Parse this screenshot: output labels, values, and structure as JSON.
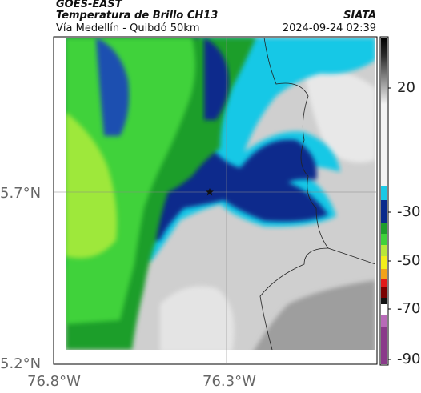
{
  "header": {
    "product": "GOES-EAST",
    "title": "Temperatura de Brillo CH13",
    "subtitle": "Vía Medellín - Quibdó 50km",
    "source": "SIATA",
    "timestamp": "2024-09-24 02:39"
  },
  "axes": {
    "lat_labels": [
      "5.7°N",
      "5.2°N"
    ],
    "lon_labels": [
      "76.8°W",
      "76.3°W"
    ]
  },
  "colorbar": {
    "tick_labels": [
      "20",
      "-30",
      "-50",
      "-70",
      "-90"
    ]
  },
  "marker": {
    "icon": "star-icon"
  },
  "colors": {
    "land_cloud_gray": "#cfcfcf",
    "deep_blue": "#0a2a8c",
    "cyan": "#19c8e6",
    "green": "#22c22a"
  }
}
